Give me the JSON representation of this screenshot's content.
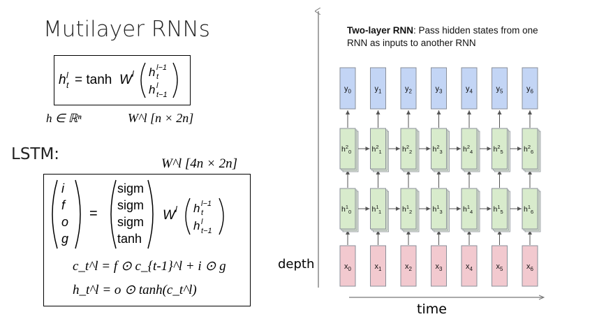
{
  "left": {
    "title": "Mutilayer RNNs",
    "rnn_eq": "h_t^l = tanh W^l (h_t^{l-1}; h_{t-1}^l)",
    "h_domain": "h ∈ ℝⁿ",
    "w_shape_rnn": "W^l  [n × 2n]",
    "lstm_label": "LSTM:",
    "w_shape_lstm": "W^l  [4n × 2n]",
    "lstm_gates": [
      "i",
      "f",
      "o",
      "g"
    ],
    "lstm_acts": [
      "sigm",
      "sigm",
      "sigm",
      "tanh"
    ],
    "cell_eq": "c_t^l = f ⊙ c_{t-1}^l + i ⊙ g",
    "hidden_eq": "h_t^l = o ⊙ tanh(c_t^l)"
  },
  "right": {
    "caption_bold": "Two-layer RNN",
    "caption_rest": ": Pass hidden states from one RNN as inputs to another RNN",
    "depth_label": "depth",
    "time_label": "time",
    "steps": [
      "0",
      "1",
      "2",
      "3",
      "4",
      "5",
      "6"
    ],
    "output_prefix": "y",
    "input_prefix": "x",
    "hidden_prefix": "h",
    "layer2_sup": "2",
    "layer1_sup": "1",
    "colors": {
      "output_fill": "#c3d5f5",
      "hidden_fill": "#d8ebcc",
      "input_fill": "#f2c9cf",
      "stroke": "#8a8f99"
    }
  }
}
